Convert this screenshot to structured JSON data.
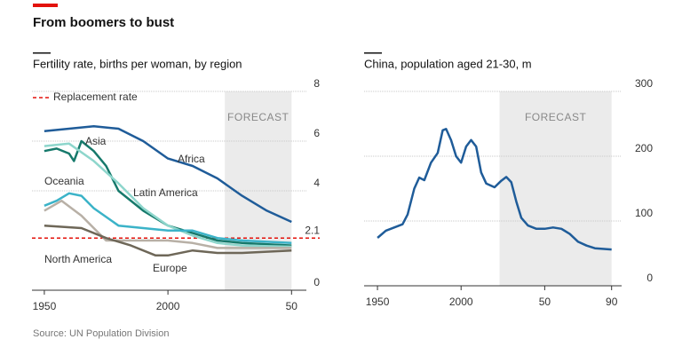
{
  "title": "From boomers to bust",
  "source": "Source: UN Population Division",
  "chart_data": [
    {
      "type": "line",
      "title": "Fertility rate, births per woman, by region",
      "xlim": [
        1945,
        2056
      ],
      "xticks": [
        1950,
        2000,
        {
          "value": 2050,
          "label": "50"
        }
      ],
      "ylim": [
        0,
        8
      ],
      "yticks": [
        0,
        4,
        6,
        8
      ],
      "grid": true,
      "forecast": [
        2023,
        2050
      ],
      "annotation": "FORECAST",
      "reference": {
        "name": "Replacement rate",
        "value": 2.1,
        "color": "#e3120b"
      },
      "series": [
        {
          "name": "Africa",
          "color": "#1f5c99",
          "x": [
            1950,
            1960,
            1970,
            1980,
            1990,
            2000,
            2010,
            2020,
            2030,
            2040,
            2050
          ],
          "values": [
            6.4,
            6.5,
            6.6,
            6.5,
            6.0,
            5.3,
            5.0,
            4.5,
            3.8,
            3.2,
            2.75
          ]
        },
        {
          "name": "Asia",
          "color": "#16796b",
          "x": [
            1950,
            1955,
            1960,
            1962,
            1965,
            1970,
            1975,
            1980,
            1990,
            2000,
            2010,
            2020,
            2030,
            2050
          ],
          "values": [
            5.6,
            5.7,
            5.5,
            5.2,
            6.0,
            5.6,
            5.0,
            4.0,
            3.2,
            2.6,
            2.3,
            2.0,
            1.9,
            1.8
          ]
        },
        {
          "name": "Latin America",
          "color": "#8ed6cc",
          "x": [
            1950,
            1960,
            1970,
            1980,
            1990,
            2000,
            2010,
            2020,
            2030,
            2050
          ],
          "values": [
            5.8,
            5.9,
            5.2,
            4.3,
            3.3,
            2.6,
            2.2,
            1.9,
            1.8,
            1.75
          ]
        },
        {
          "name": "Oceania",
          "color": "#3bb3c8",
          "x": [
            1950,
            1955,
            1960,
            1965,
            1970,
            1980,
            1990,
            2000,
            2010,
            2020,
            2030,
            2050
          ],
          "values": [
            3.4,
            3.6,
            3.9,
            3.8,
            3.3,
            2.6,
            2.5,
            2.4,
            2.4,
            2.1,
            2.0,
            1.9
          ]
        },
        {
          "name": "North America",
          "color": "#b8b0a6",
          "x": [
            1950,
            1957,
            1965,
            1975,
            1990,
            2000,
            2010,
            2020,
            2050
          ],
          "values": [
            3.2,
            3.6,
            3.0,
            2.0,
            2.0,
            2.0,
            1.9,
            1.7,
            1.7
          ]
        },
        {
          "name": "Europe",
          "color": "#6e6758",
          "x": [
            1950,
            1965,
            1975,
            1985,
            1995,
            2000,
            2010,
            2020,
            2030,
            2050
          ],
          "values": [
            2.6,
            2.5,
            2.1,
            1.8,
            1.4,
            1.4,
            1.6,
            1.5,
            1.5,
            1.6
          ]
        }
      ]
    },
    {
      "type": "line",
      "title": "China, population aged 21-30, m",
      "xlim": [
        1942,
        2096
      ],
      "xticks": [
        1950,
        2000,
        {
          "value": 2050,
          "label": "50"
        },
        {
          "value": 2090,
          "label": "90"
        }
      ],
      "ylim": [
        0,
        300
      ],
      "yticks": [
        0,
        100,
        200,
        300
      ],
      "grid": true,
      "forecast": [
        2023,
        2090
      ],
      "annotation": "FORECAST",
      "series": [
        {
          "name": "China",
          "color": "#1f5c99",
          "x": [
            1950,
            1955,
            1960,
            1965,
            1968,
            1972,
            1975,
            1978,
            1982,
            1986,
            1989,
            1991,
            1994,
            1997,
            2000,
            2003,
            2006,
            2009,
            2012,
            2015,
            2020,
            2024,
            2027,
            2030,
            2033,
            2036,
            2040,
            2045,
            2050,
            2055,
            2060,
            2065,
            2070,
            2075,
            2080,
            2090
          ],
          "values": [
            74,
            85,
            90,
            95,
            110,
            150,
            167,
            163,
            190,
            205,
            240,
            242,
            225,
            200,
            190,
            215,
            225,
            215,
            175,
            158,
            152,
            162,
            168,
            160,
            130,
            105,
            93,
            88,
            88,
            90,
            88,
            80,
            68,
            62,
            58,
            56
          ]
        }
      ]
    }
  ]
}
